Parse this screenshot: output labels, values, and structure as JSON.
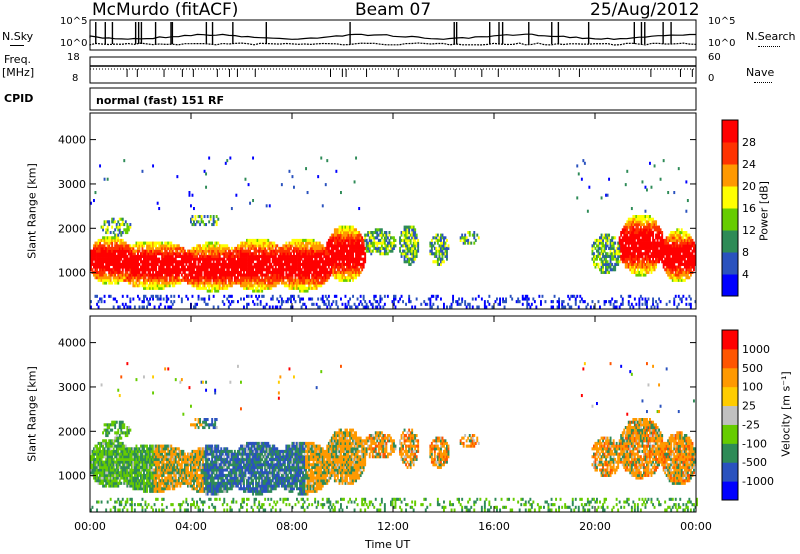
{
  "header": {
    "station": "McMurdo (fitACF)",
    "beam": "Beam 07",
    "date": "25/Aug/2012"
  },
  "top_panels": {
    "nsky_label": "N.Sky",
    "nsearch_label": "N.Search",
    "freq_label_1": "Freq.",
    "freq_label_2": "[MHz]",
    "nave_label": "Nave",
    "cpid_label": "CPID",
    "mode_text": "normal (fast) 151 RF",
    "noise_ticks_left": [
      "10^5",
      "10^0"
    ],
    "noise_ticks_right": [
      "10^5",
      "10^0"
    ],
    "freq_ticks": [
      "18",
      "8"
    ],
    "nave_ticks": [
      "60",
      "0"
    ]
  },
  "x_axis": {
    "label": "Time UT",
    "ticks": [
      "00:00",
      "04:00",
      "08:00",
      "12:00",
      "16:00",
      "20:00",
      "00:00"
    ]
  },
  "colors": {
    "power": [
      "#0000ff",
      "#2a52be",
      "#2e8b57",
      "#66cc00",
      "#ffff00",
      "#ff9900",
      "#ff3300",
      "#ff0000"
    ],
    "velocity": [
      "#ff0000",
      "#ff5500",
      "#ff9900",
      "#ffcc00",
      "#c0c0c0",
      "#66cc00",
      "#2e8b57",
      "#2a52be",
      "#0000ff"
    ]
  },
  "chart_data": [
    {
      "type": "heatmap",
      "name": "power",
      "ylabel": "Slant Range [km]",
      "xlabel": "",
      "xlim": [
        0,
        24
      ],
      "ylim": [
        180,
        4600
      ],
      "yticks": [
        "1000",
        "2000",
        "3000",
        "4000"
      ],
      "colorbar_label": "Power [dB]",
      "colorbar_ticks": [
        "4",
        "8",
        "12",
        "16",
        "20",
        "24",
        "28"
      ],
      "grid": false
    },
    {
      "type": "heatmap",
      "name": "velocity",
      "ylabel": "Slant Range [km]",
      "xlabel": "Time UT",
      "xlim": [
        0,
        24
      ],
      "ylim": [
        180,
        4600
      ],
      "yticks": [
        "1000",
        "2000",
        "3000",
        "4000"
      ],
      "colorbar_label": "Velocity [m s⁻¹]",
      "colorbar_ticks": [
        "1000",
        "500",
        "100",
        "25",
        "-25",
        "-100",
        "-500",
        "-1000"
      ],
      "grid": false
    }
  ]
}
